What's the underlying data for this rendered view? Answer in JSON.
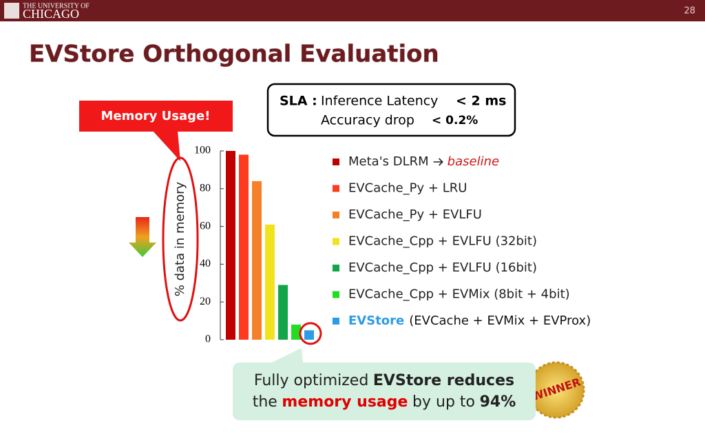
{
  "header": {
    "university_line1": "THE UNIVERSITY OF",
    "university_line2": "CHICAGO",
    "page_number": "28"
  },
  "title": "EVStore Orthogonal Evaluation",
  "sla": {
    "label": "SLA :",
    "line1": "Inference Latency",
    "limit1": "< 2 ms",
    "line2": "Accuracy drop",
    "limit2": "< 0.2%"
  },
  "callout": "Memory Usage!",
  "chart_data": {
    "type": "bar",
    "y_label": "% data in memory",
    "categories": [
      "Meta's DLRM",
      "EVCache_Py + LRU",
      "EVCache_Py + EVLFU",
      "EVCache_Cpp + EVLFU (32bit)",
      "EVCache_Cpp + EVLFU (16bit)",
      "EVCache_Cpp + EVMix (8bit + 4bit)",
      "EVStore"
    ],
    "category_notes": [
      "baseline",
      null,
      null,
      null,
      null,
      null,
      "(EVCache + EVMix + EVProx)"
    ],
    "values": [
      100,
      98,
      84,
      61,
      29,
      8,
      5
    ],
    "colors": [
      "#c00000",
      "#ff3b1f",
      "#f4802a",
      "#f2e21e",
      "#13a54a",
      "#22dd22",
      "#2e9be6"
    ],
    "ylim": [
      0,
      100
    ],
    "yticks": [
      0,
      20,
      40,
      60,
      80,
      100
    ]
  },
  "takeaway": {
    "lines": [
      [
        {
          "text": "Fully optimized",
          "style": "plain"
        },
        {
          "text": "EVStore reduces",
          "style": "bold"
        }
      ],
      [
        {
          "text": "the",
          "style": "plain"
        },
        {
          "text": "memory usage",
          "style": "red"
        },
        {
          "text": "by up to",
          "style": "plain"
        },
        {
          "text": "94%",
          "style": "bold"
        }
      ]
    ]
  },
  "badge": "WINNER"
}
